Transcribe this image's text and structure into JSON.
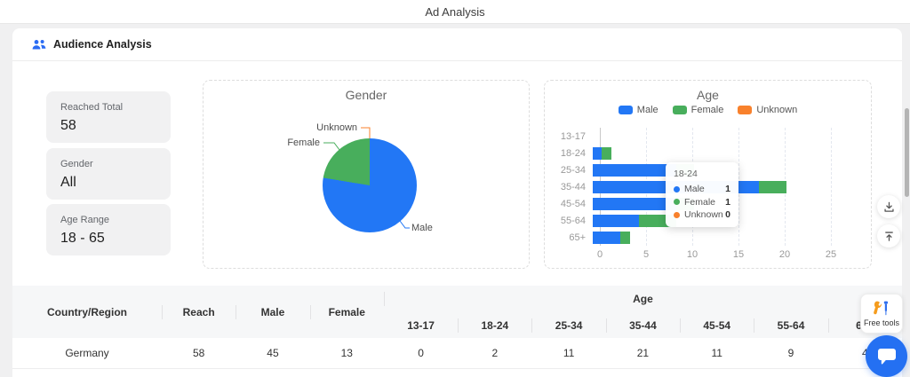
{
  "page": {
    "title": "Ad Analysis"
  },
  "section": {
    "title": "Audience Analysis"
  },
  "summary_cards": [
    {
      "label": "Reached Total",
      "value": "58"
    },
    {
      "label": "Gender",
      "value": "All"
    },
    {
      "label": "Age Range",
      "value": "18 - 65"
    }
  ],
  "colors": {
    "male": "#2277f5",
    "female": "#48ae5c",
    "unknown": "#f8812c",
    "chat_button": "#2470f2",
    "wrench": "#f59c1d",
    "screwdriver": "#2f6fed"
  },
  "chart_data": [
    {
      "type": "pie",
      "title": "Gender",
      "labels": [
        "Male",
        "Female",
        "Unknown"
      ],
      "values": [
        45,
        13,
        0
      ],
      "colors": [
        "#2277f5",
        "#48ae5c",
        "#f8812c"
      ]
    },
    {
      "type": "bar",
      "title": "Age",
      "orientation": "horizontal-stacked",
      "categories": [
        "13-17",
        "18-24",
        "25-34",
        "35-44",
        "45-54",
        "55-64",
        "65+"
      ],
      "series": [
        {
          "name": "Male",
          "values": [
            0,
            1,
            9,
            18,
            9,
            5,
            3
          ]
        },
        {
          "name": "Female",
          "values": [
            0,
            1,
            2,
            3,
            2,
            4,
            1
          ]
        },
        {
          "name": "Unknown",
          "values": [
            0,
            0,
            0,
            0,
            0,
            0,
            0
          ]
        }
      ],
      "legend": [
        "Male",
        "Female",
        "Unknown"
      ],
      "xlim": [
        0,
        25
      ],
      "xticks": [
        0,
        5,
        10,
        15,
        20,
        25
      ],
      "grid": "dashed-vertical",
      "legend_position": "top"
    }
  ],
  "tooltip": {
    "title": "18-24",
    "rows": [
      {
        "name": "Male",
        "value": "1"
      },
      {
        "name": "Female",
        "value": "1"
      },
      {
        "name": "Unknown",
        "value": "0"
      }
    ]
  },
  "table": {
    "columns": [
      "Country/Region",
      "Reach",
      "Male",
      "Female"
    ],
    "group_header": "Age",
    "age_columns": [
      "13-17",
      "18-24",
      "25-34",
      "35-44",
      "45-54",
      "55-64",
      "65+"
    ],
    "rows": [
      {
        "country": "Germany",
        "reach": "58",
        "male": "45",
        "female": "13",
        "ages": [
          "0",
          "2",
          "11",
          "21",
          "11",
          "9",
          "4"
        ]
      }
    ]
  },
  "floating": {
    "free_tools_label": "Free tools"
  }
}
